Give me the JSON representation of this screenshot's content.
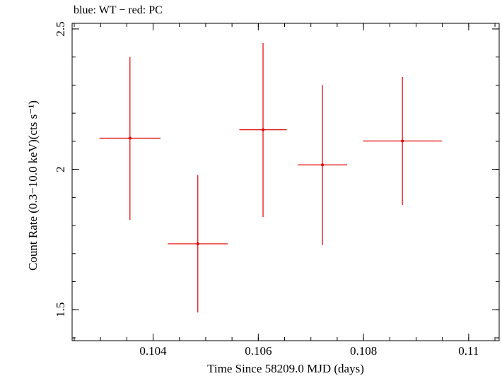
{
  "chart_data": {
    "type": "scatter",
    "title": "blue: WT − red: PC",
    "xlabel": "Time Since 58209.0 MJD (days)",
    "ylabel": "Count Rate (0.3−10.0 keV)(cts s⁻¹)",
    "xlim": [
      0.10246,
      0.11058
    ],
    "ylim": [
      1.39,
      2.52
    ],
    "x_ticks": [
      0.104,
      0.106,
      0.108,
      0.11
    ],
    "x_tick_labels": [
      "0.104",
      "0.106",
      "0.108",
      "0.11"
    ],
    "y_ticks": [
      1.5,
      2,
      2.5
    ],
    "y_tick_labels": [
      "1.5",
      "2",
      "2.5"
    ],
    "grid": false,
    "legend": "none",
    "series": [
      {
        "color": "#e00000",
        "points": [
          {
            "x": 0.10356,
            "y": 2.111,
            "xerr": 0.00058,
            "yerr_low": 0.291,
            "yerr_high": 0.289
          },
          {
            "x": 0.10485,
            "y": 1.735,
            "xerr": 0.00057,
            "yerr_low": 0.245,
            "yerr_high": 0.245
          },
          {
            "x": 0.10609,
            "y": 2.141,
            "xerr": 0.00045,
            "yerr_low": 0.311,
            "yerr_high": 0.309
          },
          {
            "x": 0.10722,
            "y": 2.016,
            "xerr": 0.00047,
            "yerr_low": 0.286,
            "yerr_high": 0.284
          },
          {
            "x": 0.10874,
            "y": 2.101,
            "xerr": 0.00075,
            "yerr_low": 0.228,
            "yerr_high": 0.228
          }
        ]
      }
    ]
  }
}
